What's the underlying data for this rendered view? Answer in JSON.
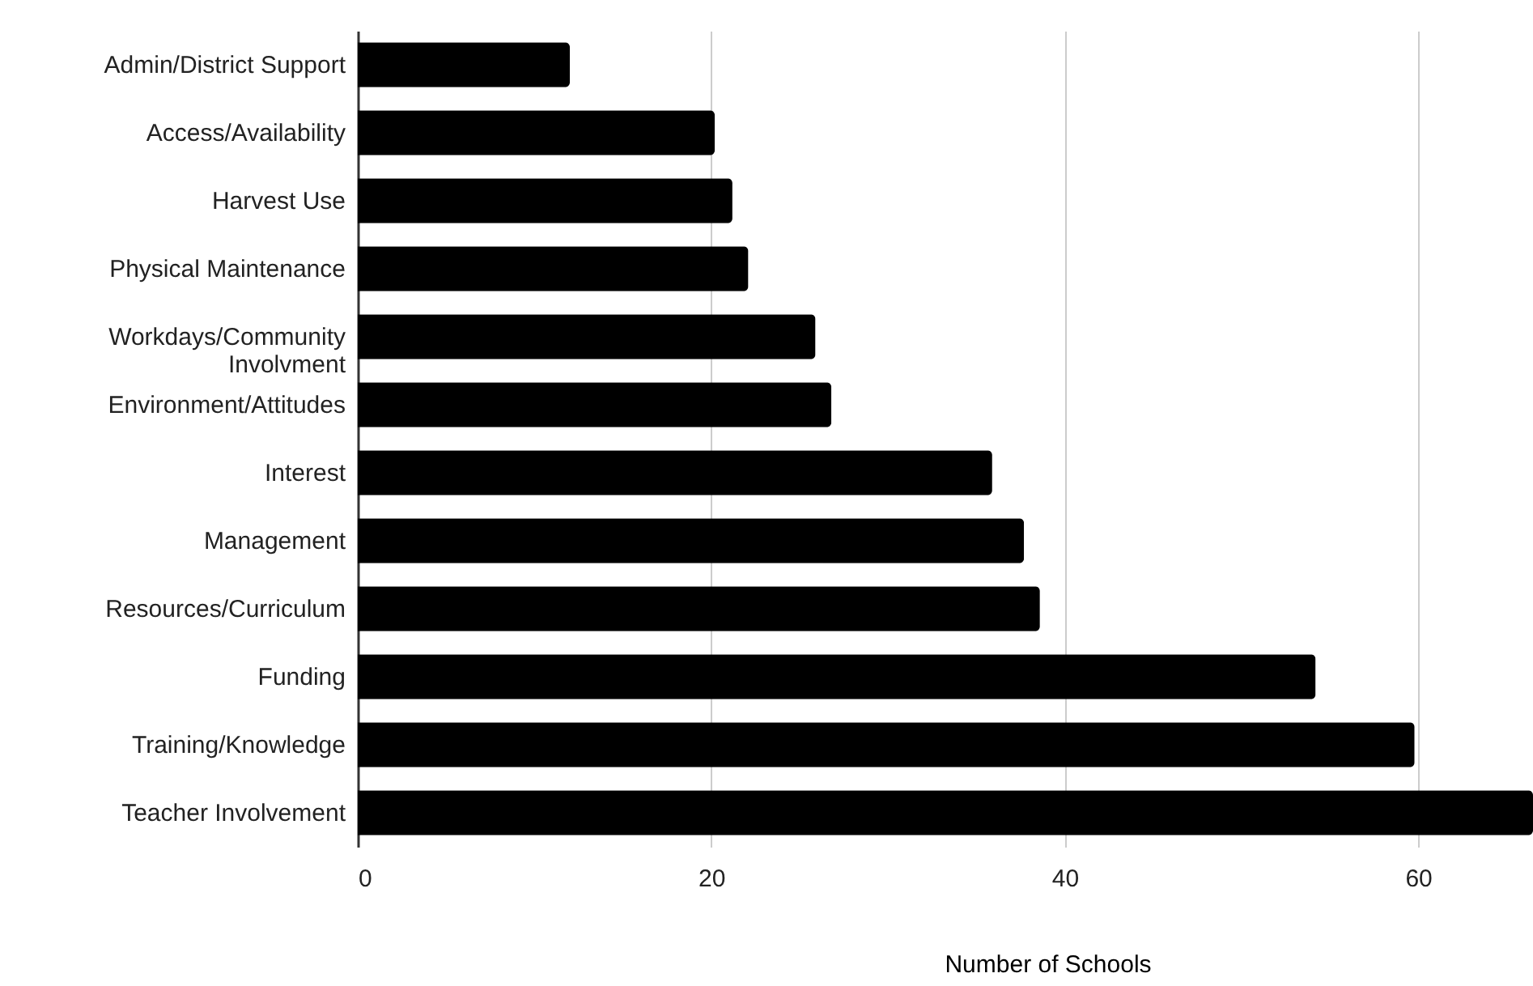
{
  "chart_data": {
    "type": "bar",
    "orientation": "horizontal",
    "xlabel": "Number of Schools",
    "categories": [
      "Admin/District Support",
      "Access/Availability",
      "Harvest Use",
      "Physical Maintenance",
      "Workdays/Community\nInvolvment",
      "Environment/Attitudes",
      "Interest",
      "Management",
      "Resources/Curriculum",
      "Funding",
      "Training/Knowledge",
      "Teacher Involvement"
    ],
    "values": [
      12,
      20.2,
      21.2,
      22.1,
      25.9,
      26.8,
      35.9,
      37.7,
      38.6,
      54.2,
      59.8,
      66.5
    ],
    "color": "#000000",
    "xlim": [
      0,
      66.5
    ],
    "xticks": [
      0,
      20,
      40,
      60
    ],
    "grid": "x"
  }
}
